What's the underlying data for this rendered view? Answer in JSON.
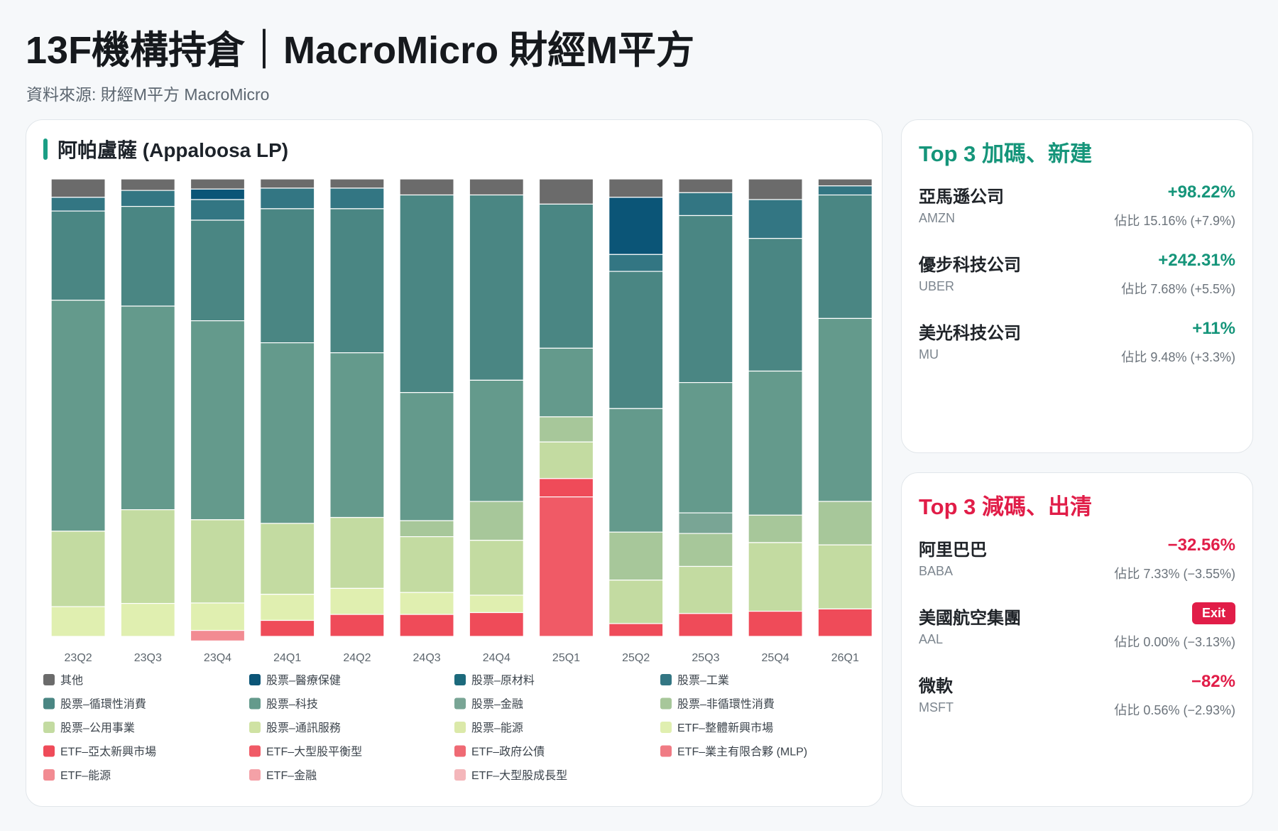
{
  "header": {
    "title": "13F機構持倉｜MacroMicro 財經M平方",
    "subtitle": "資料來源: 財經M平方 MacroMicro"
  },
  "chart_card": {
    "title": "阿帕盧薩 (Appaloosa LP)"
  },
  "top_up": {
    "title": "Top 3 加碼、新建",
    "items": [
      {
        "name": "亞馬遜公司",
        "ticker": "AMZN",
        "change": "+98.22%",
        "weight": "佔比 15.16% (+7.9%)"
      },
      {
        "name": "優步科技公司",
        "ticker": "UBER",
        "change": "+242.31%",
        "weight": "佔比 7.68% (+5.5%)"
      },
      {
        "name": "美光科技公司",
        "ticker": "MU",
        "change": "+11%",
        "weight": "佔比 9.48% (+3.3%)"
      }
    ]
  },
  "top_down": {
    "title": "Top 3 減碼、出清",
    "items": [
      {
        "name": "阿里巴巴",
        "ticker": "BABA",
        "change": "−32.56%",
        "weight": "佔比 7.33% (−3.55%)"
      },
      {
        "name": "美國航空集團",
        "ticker": "AAL",
        "badge": "Exit",
        "weight": "佔比 0.00% (−3.13%)"
      },
      {
        "name": "微軟",
        "ticker": "MSFT",
        "change": "−82%",
        "weight": "佔比 0.56% (−2.93%)"
      }
    ]
  },
  "chart_data": {
    "type": "bar",
    "stacked": true,
    "normalized_percent": true,
    "categories": [
      "23Q2",
      "23Q3",
      "23Q4",
      "24Q1",
      "24Q2",
      "24Q3",
      "24Q4",
      "25Q1",
      "25Q2",
      "25Q3",
      "25Q4",
      "26Q1"
    ],
    "ylim": [
      0,
      100
    ],
    "legend_position": "bottom",
    "series": [
      {
        "name": "其他",
        "color": "#6b6b6b",
        "values": [
          4,
          2.5,
          2.2,
          2,
          2,
          3.5,
          3.5,
          5.5,
          4,
          3,
          4.5,
          1.5
        ]
      },
      {
        "name": "股票–醫療保健",
        "color": "#0b5577",
        "values": [
          0,
          0,
          2.3,
          0,
          0,
          0,
          0,
          0,
          12.5,
          0,
          0,
          0
        ]
      },
      {
        "name": "股票–原材料",
        "color": "#1c6a7c",
        "values": [
          0,
          0,
          0,
          0,
          0,
          0,
          0,
          0,
          0,
          0,
          0,
          0
        ]
      },
      {
        "name": "股票–工業",
        "color": "#337683",
        "values": [
          3,
          3.5,
          4.5,
          4.5,
          4.5,
          0,
          0,
          0,
          3.7,
          5,
          8.5,
          2
        ]
      },
      {
        "name": "股票–循環性消費",
        "color": "#4a8683",
        "values": [
          19.5,
          21.8,
          22,
          29.3,
          31.5,
          43.2,
          40.5,
          31.5,
          30,
          36.5,
          29,
          27
        ]
      },
      {
        "name": "股票–科技",
        "color": "#649a8c",
        "values": [
          50.5,
          44.5,
          43.5,
          39.5,
          36,
          28,
          26.5,
          15,
          27,
          28.5,
          31.5,
          40
        ]
      },
      {
        "name": "股票–金融",
        "color": "#79a595",
        "values": [
          0,
          0,
          0,
          0,
          0,
          0,
          0,
          0,
          0,
          4.5,
          0,
          0
        ]
      },
      {
        "name": "股票–非循環性消費",
        "color": "#a7c79a",
        "values": [
          0,
          0,
          0,
          0,
          0,
          3.5,
          8.5,
          5.5,
          10.5,
          7.2,
          6,
          9.5
        ]
      },
      {
        "name": "股票–公用事業",
        "color": "#c3dba1",
        "values": [
          16.5,
          20.5,
          18.2,
          15.5,
          15.5,
          12.2,
          12,
          8,
          9.5,
          10.3,
          15,
          14
        ]
      },
      {
        "name": "股票–通訊服務",
        "color": "#cfe2a3",
        "values": [
          0,
          0,
          0,
          0,
          0,
          0,
          0,
          0,
          0,
          0,
          0,
          0
        ]
      },
      {
        "name": "股票–能源",
        "color": "#dbe9a9",
        "values": [
          0,
          0,
          0,
          0,
          0,
          0,
          0,
          0,
          0,
          0,
          0,
          0
        ]
      },
      {
        "name": "ETF–整體新興市場",
        "color": "#e0efb0",
        "values": [
          6.5,
          7.2,
          6,
          5.7,
          5.7,
          4.8,
          3.8,
          0,
          0,
          0,
          0,
          0
        ]
      },
      {
        "name": "ETF–亞太新興市場",
        "color": "#ef4b59",
        "values": [
          0,
          0,
          0,
          3.5,
          4.8,
          4.8,
          5.2,
          4,
          2.8,
          5,
          5.5,
          6
        ]
      },
      {
        "name": "ETF–大型股平衡型",
        "color": "#f05a66",
        "values": [
          0,
          0,
          0,
          0,
          0,
          0,
          0,
          30.5,
          0,
          0,
          0,
          0
        ]
      },
      {
        "name": "ETF–政府公債",
        "color": "#ef6a74",
        "values": [
          0,
          0,
          0,
          0,
          0,
          0,
          0,
          0,
          0,
          0,
          0,
          0
        ]
      },
      {
        "name": "ETF–業主有限合夥 (MLP)",
        "color": "#f07b84",
        "values": [
          0,
          0,
          0,
          0,
          0,
          0,
          0,
          0,
          0,
          0,
          0,
          0
        ]
      },
      {
        "name": "ETF–能源",
        "color": "#f28b92",
        "values": [
          0,
          0,
          2.3,
          0,
          0,
          0,
          0,
          0,
          0,
          0,
          0,
          0
        ]
      },
      {
        "name": "ETF–金融",
        "color": "#f4a1a7",
        "values": [
          0,
          0,
          0,
          0,
          0,
          0,
          0,
          0,
          0,
          0,
          0,
          0
        ]
      },
      {
        "name": "ETF–大型股成長型",
        "color": "#f4b6ba",
        "values": [
          0,
          0,
          0,
          0,
          0,
          0,
          0,
          0,
          0,
          0,
          0,
          0
        ]
      }
    ]
  }
}
